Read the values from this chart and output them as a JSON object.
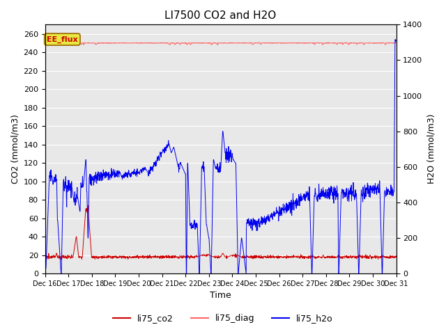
{
  "title": "LI7500 CO2 and H2O",
  "xlabel": "Time",
  "ylabel_left": "CO2 (mmol/m3)",
  "ylabel_right": "H2O (mmol/m3)",
  "ylim_left": [
    0,
    270
  ],
  "ylim_right": [
    0,
    1400
  ],
  "yticks_left": [
    0,
    20,
    40,
    60,
    80,
    100,
    120,
    140,
    160,
    180,
    200,
    220,
    240,
    260
  ],
  "yticks_right": [
    0,
    200,
    400,
    600,
    800,
    1000,
    1200,
    1400
  ],
  "xtick_labels": [
    "Dec 16",
    "Dec 17",
    "Dec 18",
    "Dec 19",
    "Dec 20",
    "Dec 21",
    "Dec 22",
    "Dec 23",
    "Dec 24",
    "Dec 25",
    "Dec 26",
    "Dec 27",
    "Dec 28",
    "Dec 29",
    "Dec 30",
    "Dec 31"
  ],
  "annotation_text": "EE_flux",
  "annotation_bg_color": "#e8e840",
  "annotation_edge_color": "#996600",
  "annotation_text_color": "#cc0000",
  "background_color": "#e8e8e8",
  "line_co2_color": "#cc0000",
  "line_diag_color": "#ff6666",
  "line_h2o_color": "#0000ee",
  "legend_entries": [
    "li75_co2",
    "li75_diag",
    "li75_h2o"
  ],
  "title_fontsize": 11,
  "grid_color": "white"
}
